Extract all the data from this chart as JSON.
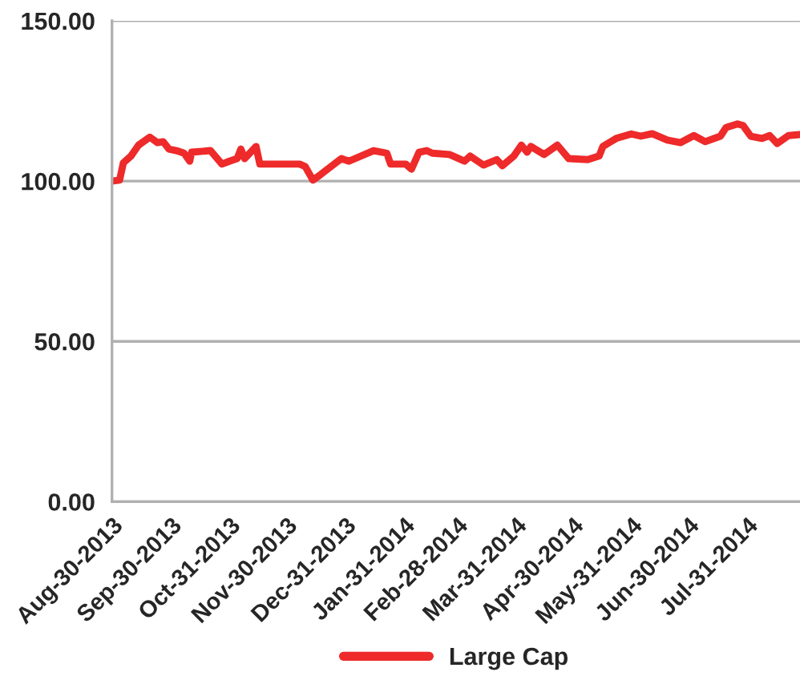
{
  "chart_data": {
    "type": "line",
    "x": [
      "2013-08-30",
      "2013-09-03",
      "2013-09-05",
      "2013-09-09",
      "2013-09-13",
      "2013-09-19",
      "2013-09-23",
      "2013-09-26",
      "2013-09-29",
      "2013-10-03",
      "2013-10-07",
      "2013-10-10",
      "2013-10-11",
      "2013-10-21",
      "2013-10-27",
      "2013-10-31",
      "2013-11-04",
      "2013-11-06",
      "2013-11-08",
      "2013-11-14",
      "2013-11-16",
      "2013-11-25",
      "2013-12-07",
      "2013-12-10",
      "2013-12-14",
      "2013-12-18",
      "2013-12-29",
      "2014-01-02",
      "2014-01-15",
      "2014-01-22",
      "2014-01-24",
      "2014-02-01",
      "2014-02-04",
      "2014-02-08",
      "2014-02-12",
      "2014-02-15",
      "2014-02-24",
      "2014-02-26",
      "2014-03-04",
      "2014-03-07",
      "2014-03-14",
      "2014-03-21",
      "2014-03-24",
      "2014-03-30",
      "2014-04-03",
      "2014-04-06",
      "2014-04-08",
      "2014-04-15",
      "2014-04-22",
      "2014-04-28",
      "2014-05-08",
      "2014-05-14",
      "2014-05-16",
      "2014-05-23",
      "2014-05-31",
      "2014-06-05",
      "2014-06-11",
      "2014-06-19",
      "2014-06-26",
      "2014-07-03",
      "2014-07-09",
      "2014-07-17",
      "2014-07-20",
      "2014-07-26",
      "2014-07-29",
      "2014-08-02",
      "2014-08-08",
      "2014-08-12",
      "2014-08-16",
      "2014-08-22",
      "2014-08-28"
    ],
    "series": [
      {
        "name": "Large Cap",
        "color": "#ee2a2a",
        "values": [
          100.0,
          100.3,
          105.7,
          107.8,
          111.2,
          113.7,
          112.0,
          112.3,
          110.0,
          109.5,
          108.7,
          106.2,
          109.0,
          109.5,
          105.3,
          106.2,
          107.0,
          110.0,
          107.0,
          110.8,
          105.3,
          105.3,
          105.3,
          104.5,
          100.3,
          102.0,
          107.0,
          106.2,
          109.5,
          108.7,
          105.3,
          105.3,
          103.7,
          109.0,
          109.5,
          108.7,
          108.3,
          107.8,
          106.2,
          107.8,
          105.0,
          106.7,
          104.8,
          107.8,
          111.2,
          109.0,
          110.8,
          108.3,
          111.2,
          107.0,
          106.7,
          107.8,
          110.8,
          113.3,
          114.7,
          114.0,
          114.8,
          112.8,
          112.0,
          114.2,
          112.3,
          114.0,
          116.7,
          117.8,
          117.3,
          114.0,
          113.3,
          114.2,
          111.7,
          114.2,
          114.5
        ]
      }
    ],
    "xlim": [
      "2013-08-30",
      "2014-08-28"
    ],
    "xticks": [
      {
        "value": "2013-08-30",
        "label": "Aug-30-2013"
      },
      {
        "value": "2013-09-30",
        "label": "Sep-30-2013"
      },
      {
        "value": "2013-10-31",
        "label": "Oct-31-2013"
      },
      {
        "value": "2013-11-30",
        "label": "Nov-30-2013"
      },
      {
        "value": "2013-12-31",
        "label": "Dec-31-2013"
      },
      {
        "value": "2014-01-31",
        "label": "Jan-31-2014"
      },
      {
        "value": "2014-02-28",
        "label": "Feb-28-2014"
      },
      {
        "value": "2014-03-31",
        "label": "Mar-31-2014"
      },
      {
        "value": "2014-04-30",
        "label": "Apr-30-2014"
      },
      {
        "value": "2014-05-31",
        "label": "May-31-2014"
      },
      {
        "value": "2014-06-30",
        "label": "Jun-30-2014"
      },
      {
        "value": "2014-07-31",
        "label": "Jul-31-2014"
      }
    ],
    "ylim": [
      0,
      150
    ],
    "yticks": [
      {
        "value": 0,
        "label": "0.00"
      },
      {
        "value": 50,
        "label": "50.00"
      },
      {
        "value": 100,
        "label": "100.00"
      },
      {
        "value": 150,
        "label": "150.00"
      }
    ],
    "grid": "y",
    "legend": "bottom",
    "marker": "none",
    "line_style": "solid"
  }
}
